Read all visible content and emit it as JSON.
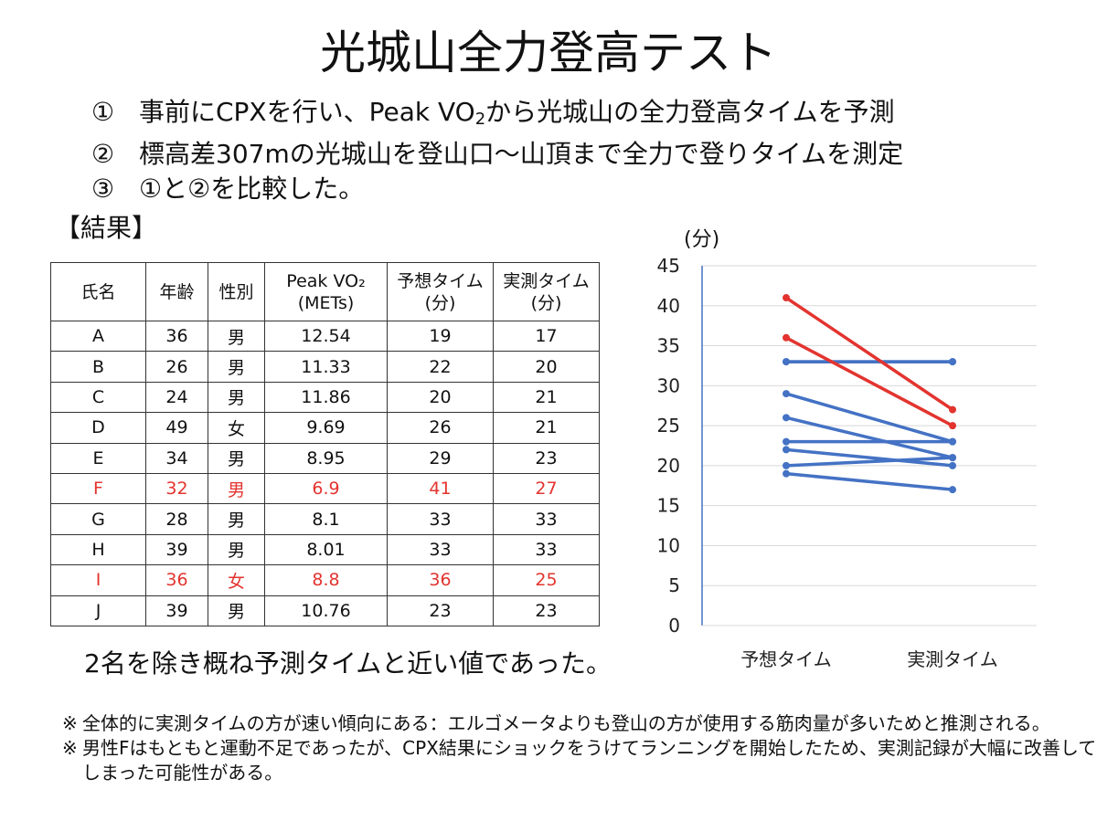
{
  "title": "光城山全力登高テスト",
  "steps": [
    {
      "num": "①",
      "text_before": "事前にCPXを行い、Peak VO",
      "sub": "2",
      "text_after": "から光城山の全力登高タイムを予測"
    },
    {
      "num": "②",
      "text_before": "標高差307mの光城山を登山口〜山頂まで全力で登りタイムを測定",
      "sub": "",
      "text_after": ""
    },
    {
      "num": "③",
      "text_before": "①と②を比較した。",
      "sub": "",
      "text_after": ""
    }
  ],
  "result_label": "【結果】",
  "table": {
    "headers": [
      "氏名",
      "年齢",
      "性別",
      "Peak VO₂\n(METs)",
      "予想タイム\n(分)",
      "実測タイム\n(分)"
    ],
    "rows": [
      {
        "cells": [
          "A",
          "36",
          "男",
          "12.54",
          "19",
          "17"
        ],
        "highlight": false
      },
      {
        "cells": [
          "B",
          "26",
          "男",
          "11.33",
          "22",
          "20"
        ],
        "highlight": false
      },
      {
        "cells": [
          "C",
          "24",
          "男",
          "11.86",
          "20",
          "21"
        ],
        "highlight": false
      },
      {
        "cells": [
          "D",
          "49",
          "女",
          "9.69",
          "26",
          "21"
        ],
        "highlight": false
      },
      {
        "cells": [
          "E",
          "34",
          "男",
          "8.95",
          "29",
          "23"
        ],
        "highlight": false
      },
      {
        "cells": [
          "F",
          "32",
          "男",
          "6.9",
          "41",
          "27"
        ],
        "highlight": true
      },
      {
        "cells": [
          "G",
          "28",
          "男",
          "8.1",
          "33",
          "33"
        ],
        "highlight": false
      },
      {
        "cells": [
          "H",
          "39",
          "男",
          "8.01",
          "33",
          "33"
        ],
        "highlight": false
      },
      {
        "cells": [
          "I",
          "36",
          "女",
          "8.8",
          "36",
          "25"
        ],
        "highlight": true
      },
      {
        "cells": [
          "J",
          "39",
          "男",
          "10.76",
          "23",
          "23"
        ],
        "highlight": false
      }
    ]
  },
  "conclusion": "2名を除き概ね予測タイムと近い値であった。",
  "notes": [
    {
      "mark": "※",
      "text": "全体的に実測タイムの方が速い傾向にある：エルゴメータよりも登山の方が使用する筋肉量が多いためと推測される。"
    },
    {
      "mark": "※",
      "text": "男性Fはもともと運動不足であったが、CPX結果にショックをうけてランニングを開始したため、実測記録が大幅に改善してしまった可能性がある。"
    }
  ],
  "chart_data": {
    "type": "line",
    "unit_label": "(分)",
    "categories": [
      "予想タイム",
      "実測タイム"
    ],
    "ylim": [
      0,
      45
    ],
    "yticks": [
      0,
      5,
      10,
      15,
      20,
      25,
      30,
      35,
      40,
      45
    ],
    "grid": true,
    "series": [
      {
        "values": [
          19,
          17
        ],
        "color": "#4472c4"
      },
      {
        "values": [
          22,
          20
        ],
        "color": "#4472c4"
      },
      {
        "values": [
          20,
          21
        ],
        "color": "#4472c4"
      },
      {
        "values": [
          26,
          21
        ],
        "color": "#4472c4"
      },
      {
        "values": [
          29,
          23
        ],
        "color": "#4472c4"
      },
      {
        "values": [
          41,
          27
        ],
        "color": "#e3342f"
      },
      {
        "values": [
          33,
          33
        ],
        "color": "#4472c4"
      },
      {
        "values": [
          33,
          33
        ],
        "color": "#4472c4"
      },
      {
        "values": [
          36,
          25
        ],
        "color": "#e3342f"
      },
      {
        "values": [
          23,
          23
        ],
        "color": "#4472c4"
      }
    ]
  }
}
